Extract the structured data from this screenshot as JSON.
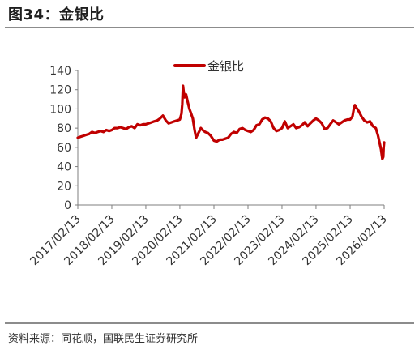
{
  "header": {
    "title": "图34：金银比"
  },
  "footer": {
    "source": "资料来源：同花顺，国联民生证券研究所"
  },
  "colors": {
    "series": "#c00000",
    "axis": "#7f7f7f",
    "text": "#333333",
    "rule": "#8c8c8c"
  },
  "chart_data": {
    "type": "line",
    "title": "",
    "xlabel": "",
    "ylabel": "",
    "ylim": [
      0,
      140
    ],
    "yticks": [
      0,
      20,
      40,
      60,
      80,
      100,
      120,
      140
    ],
    "xticks": [
      "2017/02/13",
      "2018/02/13",
      "2019/02/13",
      "2020/02/13",
      "2021/02/13",
      "2022/02/13",
      "2023/02/13",
      "2024/02/13",
      "2025/02/13",
      "2026/02/13"
    ],
    "x_range": [
      "2017/02/13",
      "2026/02/13"
    ],
    "grid": false,
    "legend": "top-center",
    "series": [
      {
        "name": "金银比",
        "points": [
          [
            "2017-02-13",
            70
          ],
          [
            "2017-03-15",
            71
          ],
          [
            "2017-04-15",
            72
          ],
          [
            "2017-05-15",
            73
          ],
          [
            "2017-06-15",
            74
          ],
          [
            "2017-07-15",
            76
          ],
          [
            "2017-08-15",
            75
          ],
          [
            "2017-09-15",
            76
          ],
          [
            "2017-10-15",
            77
          ],
          [
            "2017-11-15",
            76
          ],
          [
            "2017-12-15",
            78
          ],
          [
            "2018-01-15",
            77
          ],
          [
            "2018-02-13",
            78
          ],
          [
            "2018-03-15",
            80
          ],
          [
            "2018-04-15",
            80
          ],
          [
            "2018-05-15",
            81
          ],
          [
            "2018-06-15",
            80
          ],
          [
            "2018-07-15",
            79
          ],
          [
            "2018-08-15",
            81
          ],
          [
            "2018-09-15",
            82
          ],
          [
            "2018-10-15",
            80
          ],
          [
            "2018-11-15",
            84
          ],
          [
            "2018-12-15",
            83
          ],
          [
            "2019-01-15",
            84
          ],
          [
            "2019-02-13",
            84
          ],
          [
            "2019-03-15",
            85
          ],
          [
            "2019-04-15",
            86
          ],
          [
            "2019-05-15",
            87
          ],
          [
            "2019-06-15",
            88
          ],
          [
            "2019-07-15",
            90
          ],
          [
            "2019-08-15",
            93
          ],
          [
            "2019-09-15",
            88
          ],
          [
            "2019-10-15",
            85
          ],
          [
            "2019-11-15",
            86
          ],
          [
            "2019-12-15",
            87
          ],
          [
            "2020-01-15",
            88
          ],
          [
            "2020-02-13",
            89
          ],
          [
            "2020-03-01",
            95
          ],
          [
            "2020-03-10",
            105
          ],
          [
            "2020-03-18",
            124
          ],
          [
            "2020-03-25",
            118
          ],
          [
            "2020-04-05",
            112
          ],
          [
            "2020-04-20",
            115
          ],
          [
            "2020-05-05",
            108
          ],
          [
            "2020-05-25",
            100
          ],
          [
            "2020-06-10",
            96
          ],
          [
            "2020-07-01",
            90
          ],
          [
            "2020-07-20",
            78
          ],
          [
            "2020-08-05",
            70
          ],
          [
            "2020-08-20",
            73
          ],
          [
            "2020-09-05",
            76
          ],
          [
            "2020-09-25",
            80
          ],
          [
            "2020-10-15",
            78
          ],
          [
            "2020-11-10",
            76
          ],
          [
            "2020-12-10",
            75
          ],
          [
            "2021-01-10",
            72
          ],
          [
            "2021-02-13",
            67
          ],
          [
            "2021-03-15",
            66
          ],
          [
            "2021-04-15",
            68
          ],
          [
            "2021-05-15",
            68
          ],
          [
            "2021-06-15",
            69
          ],
          [
            "2021-07-15",
            70
          ],
          [
            "2021-08-15",
            74
          ],
          [
            "2021-09-15",
            76
          ],
          [
            "2021-10-15",
            75
          ],
          [
            "2021-11-15",
            79
          ],
          [
            "2021-12-15",
            80
          ],
          [
            "2022-01-15",
            78
          ],
          [
            "2022-02-13",
            77
          ],
          [
            "2022-03-15",
            76
          ],
          [
            "2022-04-15",
            78
          ],
          [
            "2022-05-15",
            83
          ],
          [
            "2022-06-15",
            84
          ],
          [
            "2022-07-15",
            89
          ],
          [
            "2022-08-15",
            91
          ],
          [
            "2022-09-15",
            90
          ],
          [
            "2022-10-15",
            87
          ],
          [
            "2022-11-15",
            80
          ],
          [
            "2022-12-15",
            77
          ],
          [
            "2023-01-15",
            78
          ],
          [
            "2023-02-13",
            80
          ],
          [
            "2023-03-15",
            87
          ],
          [
            "2023-04-15",
            80
          ],
          [
            "2023-05-15",
            82
          ],
          [
            "2023-06-15",
            84
          ],
          [
            "2023-07-15",
            80
          ],
          [
            "2023-08-15",
            81
          ],
          [
            "2023-09-15",
            83
          ],
          [
            "2023-10-15",
            86
          ],
          [
            "2023-11-15",
            82
          ],
          [
            "2023-12-15",
            85
          ],
          [
            "2024-01-15",
            88
          ],
          [
            "2024-02-13",
            90
          ],
          [
            "2024-03-15",
            88
          ],
          [
            "2024-04-15",
            85
          ],
          [
            "2024-05-15",
            79
          ],
          [
            "2024-06-15",
            80
          ],
          [
            "2024-07-15",
            84
          ],
          [
            "2024-08-15",
            88
          ],
          [
            "2024-09-15",
            86
          ],
          [
            "2024-10-15",
            84
          ],
          [
            "2024-11-15",
            86
          ],
          [
            "2024-12-15",
            88
          ],
          [
            "2025-01-15",
            89
          ],
          [
            "2025-02-13",
            89
          ],
          [
            "2025-03-10",
            92
          ],
          [
            "2025-03-25",
            100
          ],
          [
            "2025-04-05",
            104
          ],
          [
            "2025-04-15",
            102
          ],
          [
            "2025-05-01",
            100
          ],
          [
            "2025-05-20",
            97
          ],
          [
            "2025-06-15",
            92
          ],
          [
            "2025-07-15",
            88
          ],
          [
            "2025-08-15",
            86
          ],
          [
            "2025-09-15",
            87
          ],
          [
            "2025-10-15",
            82
          ],
          [
            "2025-11-15",
            80
          ],
          [
            "2025-12-10",
            72
          ],
          [
            "2025-12-25",
            65
          ],
          [
            "2026-01-10",
            58
          ],
          [
            "2026-01-25",
            48
          ],
          [
            "2026-02-03",
            50
          ],
          [
            "2026-02-08",
            60
          ],
          [
            "2026-02-13",
            65
          ]
        ]
      }
    ]
  }
}
